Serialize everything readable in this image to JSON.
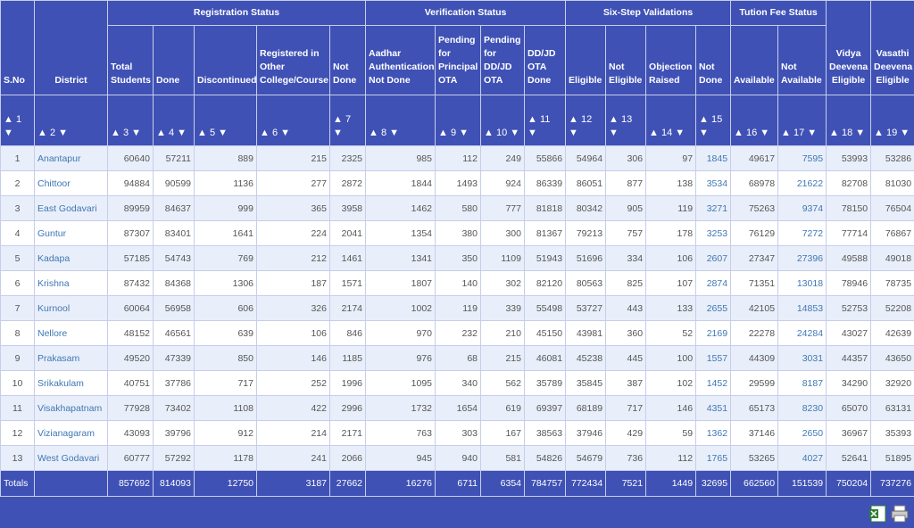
{
  "table": {
    "group_headers": [
      "Registration Status",
      "Verification Status",
      "Six-Step Validations",
      "Tution Fee Status"
    ],
    "columns": [
      "S.No",
      "District",
      "Total Students",
      "Done",
      "Discontinued",
      "Registered in Other College/Course",
      "Not Done",
      "Aadhar Authentication Not Done",
      "Pending for Principal OTA",
      "Pending for DD/JD OTA",
      "DD/JD OTA Done",
      "Eligible",
      "Not Eligible",
      "Objection Raised",
      "Not Done",
      "Available",
      "Not Available",
      "Vidya Deevena Eligible",
      "Vasathi Deevena Eligible"
    ],
    "column_numbers": [
      1,
      2,
      3,
      4,
      5,
      6,
      7,
      8,
      9,
      10,
      11,
      12,
      13,
      14,
      15,
      16,
      17,
      18,
      19
    ],
    "rows": [
      [
        1,
        "Anantapur",
        60640,
        57211,
        889,
        215,
        2325,
        985,
        112,
        249,
        55866,
        54964,
        306,
        97,
        1845,
        49617,
        7595,
        53993,
        53286
      ],
      [
        2,
        "Chittoor",
        94884,
        90599,
        1136,
        277,
        2872,
        1844,
        1493,
        924,
        86339,
        86051,
        877,
        138,
        3534,
        68978,
        21622,
        82708,
        81030
      ],
      [
        3,
        "East Godavari",
        89959,
        84637,
        999,
        365,
        3958,
        1462,
        580,
        777,
        81818,
        80342,
        905,
        119,
        3271,
        75263,
        9374,
        78150,
        76504
      ],
      [
        4,
        "Guntur",
        87307,
        83401,
        1641,
        224,
        2041,
        1354,
        380,
        300,
        81367,
        79213,
        757,
        178,
        3253,
        76129,
        7272,
        77714,
        76867
      ],
      [
        5,
        "Kadapa",
        57185,
        54743,
        769,
        212,
        1461,
        1341,
        350,
        1109,
        51943,
        51696,
        334,
        106,
        2607,
        27347,
        27396,
        49588,
        49018
      ],
      [
        6,
        "Krishna",
        87432,
        84368,
        1306,
        187,
        1571,
        1807,
        140,
        302,
        82120,
        80563,
        825,
        107,
        2874,
        71351,
        13018,
        78946,
        78735
      ],
      [
        7,
        "Kurnool",
        60064,
        56958,
        606,
        326,
        2174,
        1002,
        119,
        339,
        55498,
        53727,
        443,
        133,
        2655,
        42105,
        14853,
        52753,
        52208
      ],
      [
        8,
        "Nellore",
        48152,
        46561,
        639,
        106,
        846,
        970,
        232,
        210,
        45150,
        43981,
        360,
        52,
        2169,
        22278,
        24284,
        43027,
        42639
      ],
      [
        9,
        "Prakasam",
        49520,
        47339,
        850,
        146,
        1185,
        976,
        68,
        215,
        46081,
        45238,
        445,
        100,
        1557,
        44309,
        3031,
        44357,
        43650
      ],
      [
        10,
        "Srikakulam",
        40751,
        37786,
        717,
        252,
        1996,
        1095,
        340,
        562,
        35789,
        35845,
        387,
        102,
        1452,
        29599,
        8187,
        34290,
        32920
      ],
      [
        11,
        "Visakhapatnam",
        77928,
        73402,
        1108,
        422,
        2996,
        1732,
        1654,
        619,
        69397,
        68189,
        717,
        146,
        4351,
        65173,
        8230,
        65070,
        63131
      ],
      [
        12,
        "Vizianagaram",
        43093,
        39796,
        912,
        214,
        2171,
        763,
        303,
        167,
        38563,
        37946,
        429,
        59,
        1362,
        37146,
        2650,
        36967,
        35393
      ],
      [
        13,
        "West Godavari",
        60777,
        57292,
        1178,
        241,
        2066,
        945,
        940,
        581,
        54826,
        54679,
        736,
        112,
        1765,
        53265,
        4027,
        52641,
        51895
      ]
    ],
    "totals": {
      "label": "Totals",
      "values": [
        857692,
        814093,
        12750,
        3187,
        27662,
        16276,
        6711,
        6354,
        784757,
        772434,
        7521,
        1449,
        32695,
        662560,
        151539,
        750204,
        737276
      ]
    }
  }
}
